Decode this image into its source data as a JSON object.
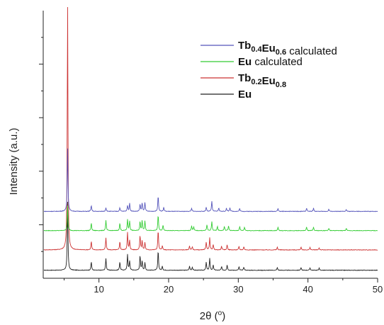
{
  "chart_data": {
    "type": "line",
    "title": "",
    "xlabel": "2θ (°)",
    "xlabel_parts": {
      "main": "2θ (",
      "sup": "o",
      "tail": ")"
    },
    "ylabel": "Intensity (a.u.)",
    "xlim": [
      2,
      50
    ],
    "ylim": [
      0,
      1
    ],
    "x_ticks": [
      10,
      20,
      30,
      40,
      50
    ],
    "x_tick_labels": [
      "10",
      "20",
      "30",
      "40",
      "50"
    ],
    "y_tick_labels": [],
    "grid": false,
    "legend_position": "top-right",
    "series": [
      {
        "name": "Eu",
        "legend_parts": [
          {
            "t": "Eu",
            "s": "b"
          }
        ],
        "color": "#222222",
        "baseline": 0.03,
        "peaks": [
          [
            5.5,
            0.26
          ],
          [
            8.9,
            0.032
          ],
          [
            11.0,
            0.045
          ],
          [
            13.0,
            0.032
          ],
          [
            14.1,
            0.06
          ],
          [
            14.4,
            0.035
          ],
          [
            15.9,
            0.055
          ],
          [
            16.2,
            0.035
          ],
          [
            16.6,
            0.028
          ],
          [
            18.5,
            0.075
          ],
          [
            19.1,
            0.015
          ],
          [
            23.0,
            0.015
          ],
          [
            23.4,
            0.012
          ],
          [
            25.4,
            0.03
          ],
          [
            25.9,
            0.045
          ],
          [
            26.4,
            0.02
          ],
          [
            27.6,
            0.014
          ],
          [
            28.4,
            0.02
          ],
          [
            30.1,
            0.013
          ],
          [
            30.8,
            0.012
          ],
          [
            35.6,
            0.01
          ],
          [
            39.0,
            0.01
          ],
          [
            40.3,
            0.009
          ],
          [
            41.6,
            0.008
          ]
        ]
      },
      {
        "name": "Tb0.2Eu0.8",
        "legend_parts": [
          {
            "t": "Tb",
            "s": "b"
          },
          {
            "t": "0.2",
            "s": "sub"
          },
          {
            "t": "Eu",
            "s": "b"
          },
          {
            "t": "0.8",
            "s": "sub"
          }
        ],
        "color": "#cc3333",
        "baseline": 0.106,
        "peaks": [
          [
            5.5,
            0.925
          ],
          [
            8.9,
            0.032
          ],
          [
            11.0,
            0.045
          ],
          [
            13.0,
            0.032
          ],
          [
            14.1,
            0.065
          ],
          [
            14.4,
            0.035
          ],
          [
            15.9,
            0.055
          ],
          [
            16.2,
            0.035
          ],
          [
            16.6,
            0.028
          ],
          [
            18.5,
            0.075
          ],
          [
            19.1,
            0.015
          ],
          [
            23.0,
            0.015
          ],
          [
            23.4,
            0.012
          ],
          [
            25.4,
            0.03
          ],
          [
            25.9,
            0.045
          ],
          [
            26.4,
            0.02
          ],
          [
            27.6,
            0.014
          ],
          [
            28.4,
            0.02
          ],
          [
            30.1,
            0.013
          ],
          [
            30.8,
            0.012
          ],
          [
            35.6,
            0.01
          ],
          [
            39.0,
            0.01
          ],
          [
            40.3,
            0.009
          ],
          [
            41.6,
            0.008
          ]
        ]
      },
      {
        "name": "Eu calculated",
        "legend_parts": [
          {
            "t": "Eu",
            "s": "b"
          },
          {
            "t": " calculated",
            "s": ""
          }
        ],
        "color": "#33cc33",
        "baseline": 0.178,
        "peaks": [
          [
            5.5,
            0.095
          ],
          [
            8.9,
            0.028
          ],
          [
            11.0,
            0.038
          ],
          [
            13.0,
            0.028
          ],
          [
            14.1,
            0.042
          ],
          [
            14.4,
            0.036
          ],
          [
            15.9,
            0.034
          ],
          [
            16.2,
            0.038
          ],
          [
            16.6,
            0.036
          ],
          [
            18.5,
            0.06
          ],
          [
            19.2,
            0.02
          ],
          [
            23.3,
            0.018
          ],
          [
            23.6,
            0.014
          ],
          [
            25.5,
            0.022
          ],
          [
            26.2,
            0.034
          ],
          [
            27.0,
            0.016
          ],
          [
            28.0,
            0.016
          ],
          [
            28.6,
            0.018
          ],
          [
            30.2,
            0.015
          ],
          [
            30.9,
            0.013
          ],
          [
            35.7,
            0.012
          ],
          [
            39.8,
            0.013
          ],
          [
            40.8,
            0.013
          ],
          [
            43.0,
            0.009
          ],
          [
            45.5,
            0.008
          ]
        ]
      },
      {
        "name": "Tb0.4Eu0.6 calculated",
        "legend_parts": [
          {
            "t": "Tb",
            "s": "b"
          },
          {
            "t": "0.4",
            "s": "sub"
          },
          {
            "t": "Eu",
            "s": "b"
          },
          {
            "t": "0.6",
            "s": "sub"
          },
          {
            "t": " calculated",
            "s": ""
          }
        ],
        "color": "#5555bb",
        "baseline": 0.25,
        "peaks": [
          [
            5.5,
            0.24
          ],
          [
            8.9,
            0.022
          ],
          [
            11.0,
            0.014
          ],
          [
            13.0,
            0.014
          ],
          [
            14.1,
            0.022
          ],
          [
            14.4,
            0.03
          ],
          [
            15.9,
            0.026
          ],
          [
            16.2,
            0.032
          ],
          [
            16.6,
            0.034
          ],
          [
            18.5,
            0.06
          ],
          [
            19.3,
            0.015
          ],
          [
            23.3,
            0.012
          ],
          [
            25.4,
            0.016
          ],
          [
            26.2,
            0.038
          ],
          [
            27.2,
            0.013
          ],
          [
            28.3,
            0.012
          ],
          [
            28.8,
            0.014
          ],
          [
            30.2,
            0.011
          ],
          [
            35.7,
            0.011
          ],
          [
            39.8,
            0.012
          ],
          [
            40.8,
            0.012
          ],
          [
            43.0,
            0.008
          ],
          [
            45.5,
            0.007
          ]
        ]
      }
    ]
  }
}
